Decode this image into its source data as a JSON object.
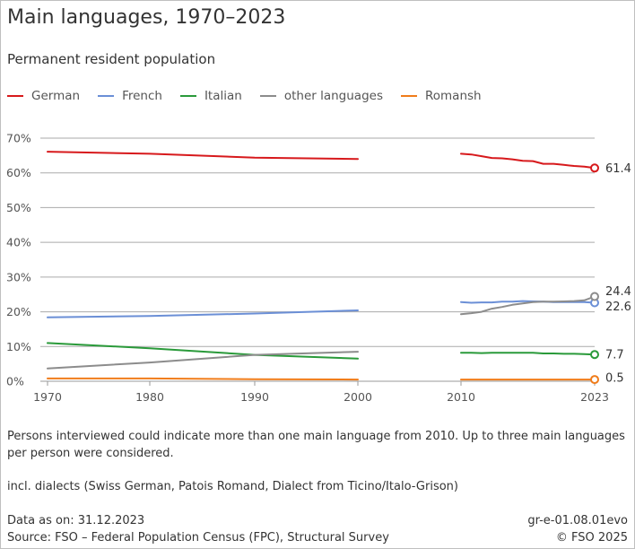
{
  "header": {
    "title": "Main languages, 1970–2023",
    "subtitle": "Permanent resident population"
  },
  "notes": {
    "multi_language": "Persons interviewed could indicate more than one main language from 2010. Up to three main languages per person were considered.",
    "dialects": "incl. dialects (Swiss German, Patois Romand, Dialect from Ticino/Italo-Grison)"
  },
  "footer": {
    "data_as_on": "Data as on: 31.12.2023",
    "source": "Source: FSO – Federal Population Census (FPC), Structural Survey",
    "code": "gr-e-01.08.01evo",
    "copyright": "© FSO 2025"
  },
  "colors": {
    "German": "#d7191c",
    "French": "#6b8fd6",
    "Italian": "#2a9a3a",
    "other languages": "#8c8c8c",
    "Romansh": "#f07c1a"
  },
  "chart_data": {
    "type": "line",
    "title": "Main languages, 1970–2023",
    "subtitle": "Permanent resident population",
    "xlabel": "",
    "ylabel": "",
    "xlim": [
      1970,
      2023
    ],
    "ylim": [
      0,
      70
    ],
    "x_ticks": [
      1970,
      1980,
      1990,
      2000,
      2010,
      2023
    ],
    "x_tick_labels": [
      "1970",
      "1980",
      "1990",
      "2000",
      "2010",
      "2023"
    ],
    "y_ticks": [
      0,
      10,
      20,
      30,
      40,
      50,
      60,
      70
    ],
    "y_tick_labels": [
      "0%",
      "10%",
      "20%",
      "30%",
      "40%",
      "50%",
      "60%",
      "70%"
    ],
    "grid": "horizontal",
    "legend_position": "top-left",
    "series": [
      {
        "name": "German",
        "segments": [
          {
            "x": [
              1970,
              1980,
              1990,
              2000
            ],
            "y": [
              66.1,
              65.5,
              64.4,
              64.0
            ]
          },
          {
            "x": [
              2010,
              2011,
              2012,
              2013,
              2014,
              2015,
              2016,
              2017,
              2018,
              2019,
              2020,
              2021,
              2022,
              2023
            ],
            "y": [
              65.5,
              65.3,
              64.8,
              64.3,
              64.2,
              63.9,
              63.5,
              63.4,
              62.6,
              62.6,
              62.3,
              62.0,
              61.8,
              61.4
            ]
          }
        ],
        "end_label": "61.4"
      },
      {
        "name": "French",
        "segments": [
          {
            "x": [
              1970,
              1980,
              1990,
              2000
            ],
            "y": [
              18.4,
              18.8,
              19.5,
              20.4
            ]
          },
          {
            "x": [
              2010,
              2011,
              2012,
              2013,
              2014,
              2015,
              2016,
              2017,
              2018,
              2019,
              2020,
              2021,
              2022,
              2023
            ],
            "y": [
              22.8,
              22.6,
              22.7,
              22.7,
              22.9,
              22.9,
              23.1,
              23.0,
              22.9,
              22.8,
              22.8,
              22.8,
              22.8,
              22.6
            ]
          }
        ],
        "end_label": "22.6"
      },
      {
        "name": "Italian",
        "segments": [
          {
            "x": [
              1970,
              1980,
              1990,
              2000
            ],
            "y": [
              11.0,
              9.5,
              7.6,
              6.5
            ]
          },
          {
            "x": [
              2010,
              2011,
              2012,
              2013,
              2014,
              2015,
              2016,
              2017,
              2018,
              2019,
              2020,
              2021,
              2022,
              2023
            ],
            "y": [
              8.2,
              8.2,
              8.1,
              8.2,
              8.2,
              8.2,
              8.2,
              8.2,
              8.0,
              8.0,
              7.9,
              7.9,
              7.8,
              7.7
            ]
          }
        ],
        "end_label": "7.7"
      },
      {
        "name": "other languages",
        "segments": [
          {
            "x": [
              1970,
              1980,
              1990,
              2000
            ],
            "y": [
              3.7,
              5.4,
              7.6,
              8.5
            ]
          },
          {
            "x": [
              2010,
              2011,
              2012,
              2013,
              2014,
              2015,
              2016,
              2017,
              2018,
              2019,
              2020,
              2021,
              2022,
              2023
            ],
            "y": [
              19.3,
              19.6,
              20.0,
              20.9,
              21.4,
              22.0,
              22.4,
              22.8,
              22.9,
              22.9,
              23.0,
              23.1,
              23.3,
              24.4
            ]
          }
        ],
        "end_label": "24.4"
      },
      {
        "name": "Romansh",
        "segments": [
          {
            "x": [
              1970,
              1980,
              1990,
              2000
            ],
            "y": [
              0.8,
              0.8,
              0.6,
              0.5
            ]
          },
          {
            "x": [
              2010,
              2011,
              2012,
              2013,
              2014,
              2015,
              2016,
              2017,
              2018,
              2019,
              2020,
              2021,
              2022,
              2023
            ],
            "y": [
              0.5,
              0.5,
              0.5,
              0.5,
              0.5,
              0.5,
              0.5,
              0.5,
              0.5,
              0.5,
              0.5,
              0.5,
              0.5,
              0.5
            ]
          }
        ],
        "end_label": "0.5"
      }
    ]
  }
}
